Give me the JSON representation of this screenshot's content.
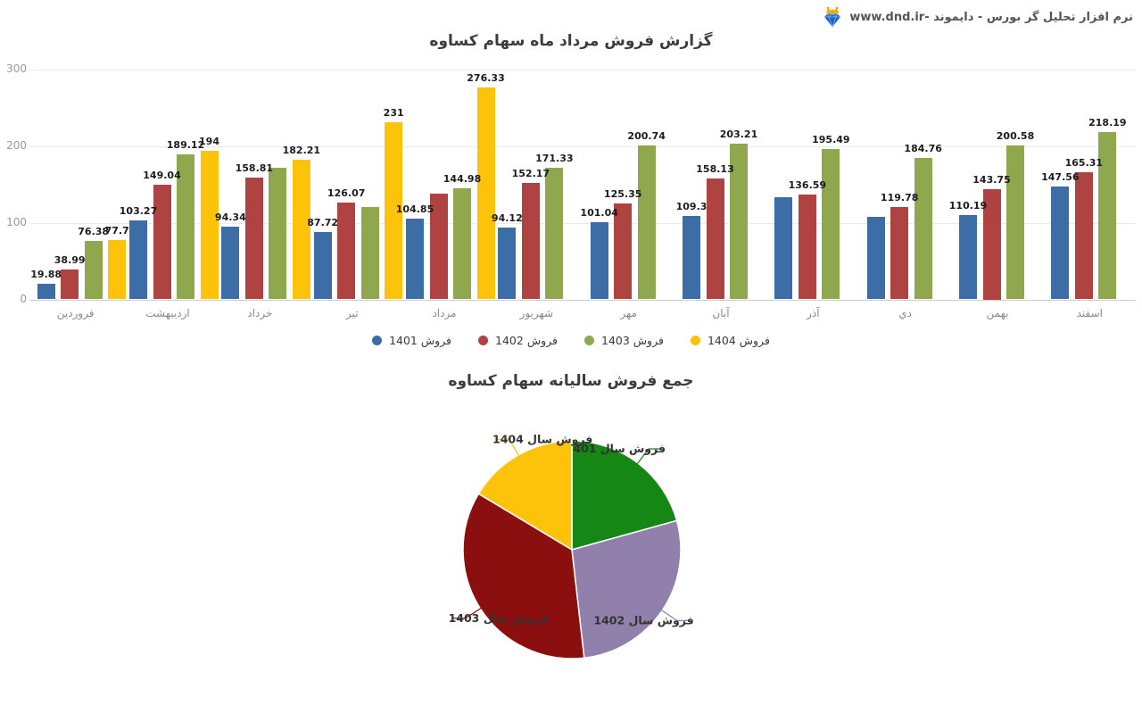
{
  "header": {
    "brand_text": "نرم افزار تحلیل گر بورس - دایموند -www.dnd.ir",
    "logo_icon": "diamond-crown-icon"
  },
  "bar_section": {
    "title": "گزارش فروش مرداد ماه سهام کساوه"
  },
  "pie_section": {
    "title": "جمع فروش سالیانه سهام کساوه"
  },
  "chart_data": [
    {
      "type": "bar",
      "title": "گزارش فروش مرداد ماه سهام کساوه",
      "categories": [
        "فروردین",
        "اردیبهشت",
        "خرداد",
        "تیر",
        "مرداد",
        "شهریور",
        "مهر",
        "آبان",
        "آذر",
        "دي",
        "بهمن",
        "اسفند"
      ],
      "series": [
        {
          "name": "فروش 1401",
          "color": "#3d6da6",
          "values": [
            19.88,
            103.27,
            94.34,
            87.72,
            104.85,
            94.12,
            101.04,
            109.3,
            133,
            107,
            110.19,
            147.56
          ],
          "labels": [
            "19.88",
            "103.27",
            "94.34",
            "87.72",
            "104.85",
            "94.12",
            "101.04",
            "109.3",
            "",
            "",
            "110.19",
            "147.56"
          ]
        },
        {
          "name": "فروش 1402",
          "color": "#ae4341",
          "values": [
            38.99,
            149.04,
            158.81,
            126.07,
            138,
            152.17,
            125.35,
            158.13,
            136.59,
            119.78,
            143.75,
            165.31
          ],
          "labels": [
            "38.99",
            "149.04",
            "158.81",
            "126.07",
            "",
            "152.17",
            "125.35",
            "158.13",
            "136.59",
            "119.78",
            "143.75",
            "165.31"
          ]
        },
        {
          "name": "فروش 1403",
          "color": "#8fa84d",
          "values": [
            76.38,
            189.12,
            171,
            120,
            144.98,
            171.33,
            200.74,
            203.21,
            195.49,
            184.76,
            200.58,
            218.19
          ],
          "labels": [
            "76.38",
            "189.12",
            "",
            "",
            "144.98",
            "171.33",
            "200.74",
            "203.21",
            "195.49",
            "184.76",
            "200.58",
            "218.19"
          ]
        },
        {
          "name": "فروش 1404",
          "color": "#fdc30a",
          "values": [
            77.7,
            194,
            182.21,
            231,
            276.33,
            null,
            null,
            null,
            null,
            null,
            null,
            null
          ],
          "labels": [
            "77.7",
            "194",
            "182.21",
            "231",
            "276.33",
            "",
            "",
            "",
            "",
            "",
            "",
            ""
          ]
        }
      ],
      "ylim": [
        0,
        300
      ],
      "yticks": [
        0,
        100,
        200,
        300
      ],
      "ytick_labels": [
        "0",
        "100",
        "200",
        "300"
      ],
      "grid": true,
      "legend_position": "bottom"
    },
    {
      "type": "pie",
      "title": "جمع فروش سالیانه سهام کساوه",
      "slices": [
        {
          "label": "فروش سال 1401",
          "value": 1212,
          "percent": 20.7,
          "color": "#148714"
        },
        {
          "label": "فروش سال 1402",
          "value": 1612,
          "percent": 27.5,
          "color": "#9080ab"
        },
        {
          "label": "فروش سال 1403",
          "value": 2076,
          "percent": 35.4,
          "color": "#8a0f0e"
        },
        {
          "label": "فروش سال 1404",
          "value": 961,
          "percent": 16.4,
          "color": "#fdc30a"
        }
      ],
      "start_angle_deg": 0,
      "direction": "clockwise",
      "labels_outside": true
    }
  ]
}
